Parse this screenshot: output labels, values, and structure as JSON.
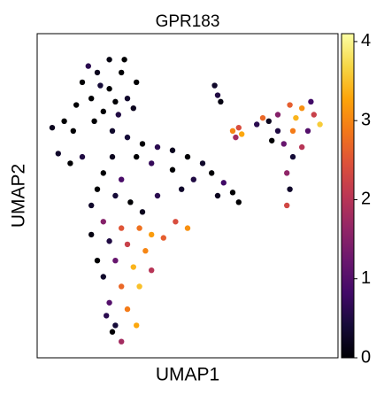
{
  "chart_data": {
    "type": "scatter",
    "title": "GPR183",
    "xlabel": "UMAP1",
    "ylabel": "UMAP2",
    "xlim": [
      0,
      100
    ],
    "ylim": [
      0,
      100
    ],
    "x": [
      24,
      20,
      28,
      24,
      18,
      30,
      22,
      27,
      15,
      33,
      21,
      26,
      17,
      29,
      32,
      19,
      25,
      13,
      9,
      5,
      12,
      7,
      11,
      15,
      30,
      35,
      40,
      45,
      50,
      55,
      58,
      62,
      65,
      60,
      52,
      45,
      38,
      33,
      48,
      67,
      25,
      22,
      28,
      20,
      26,
      31,
      18,
      40,
      35,
      22,
      28,
      34,
      38,
      24,
      30,
      36,
      42,
      26,
      32,
      38,
      22,
      28,
      34,
      24,
      30,
      26,
      28,
      25,
      33,
      20,
      18,
      23,
      46,
      50,
      59,
      60,
      61,
      65,
      67,
      68,
      66,
      80,
      84,
      88,
      92,
      94,
      90,
      85,
      80,
      77,
      86,
      82,
      88,
      78,
      91,
      85,
      83,
      84,
      83,
      75,
      73
    ],
    "y": [
      83,
      88,
      88,
      92,
      80,
      80,
      76,
      75,
      85,
      85,
      84,
      79,
      90,
      92,
      77,
      73,
      70,
      78,
      73,
      71,
      70,
      63,
      60,
      62,
      68,
      66,
      65,
      64,
      62,
      60,
      57,
      54,
      51,
      50,
      55,
      58,
      60,
      62,
      52,
      48,
      62,
      57,
      55,
      52,
      50,
      48,
      47,
      50,
      45,
      42,
      40,
      40,
      38,
      36,
      35,
      33,
      37,
      30,
      28,
      27,
      25,
      22,
      22,
      17,
      15,
      10,
      5,
      8,
      10,
      30,
      38,
      13,
      42,
      40,
      84,
      81,
      79,
      70,
      71,
      69,
      68,
      75,
      78,
      77,
      75,
      72,
      70,
      70,
      70,
      73,
      74,
      66,
      65,
      67,
      79,
      62,
      57,
      52,
      47,
      74,
      72
    ],
    "values": [
      0,
      0.2,
      0,
      0.1,
      0,
      0.3,
      0,
      0.5,
      0,
      0,
      0.4,
      0,
      0.6,
      0,
      0.2,
      0,
      0.3,
      0,
      0,
      0.2,
      0,
      0.3,
      0,
      0.5,
      0.4,
      0,
      0.6,
      0.2,
      0,
      0.3,
      0,
      0.8,
      0,
      0.2,
      0.5,
      0,
      0.7,
      0,
      0.3,
      0,
      0.2,
      0,
      0.9,
      0,
      0.4,
      0,
      0.3,
      0.6,
      0.2,
      1.5,
      2.5,
      2.8,
      3.2,
      0.5,
      2.2,
      3.0,
      2.6,
      1.2,
      3.4,
      2.0,
      0.3,
      2.7,
      3.5,
      1.0,
      2.9,
      0.4,
      1.8,
      0,
      3.3,
      0,
      0.1,
      0.6,
      2.4,
      3.1,
      0.3,
      0.5,
      0.1,
      3.0,
      2.4,
      3.3,
      1.8,
      1.5,
      2.6,
      3.1,
      2.2,
      3.6,
      1.0,
      2.9,
      0.5,
      0.2,
      3.4,
      1.2,
      2.0,
      0,
      0.8,
      0.4,
      1.6,
      0.3,
      2.3,
      2.7,
      0.6
    ],
    "colormap": "inferno",
    "clim": [
      0,
      4.1
    ],
    "cticks": [
      0,
      1,
      2,
      3,
      4
    ]
  }
}
